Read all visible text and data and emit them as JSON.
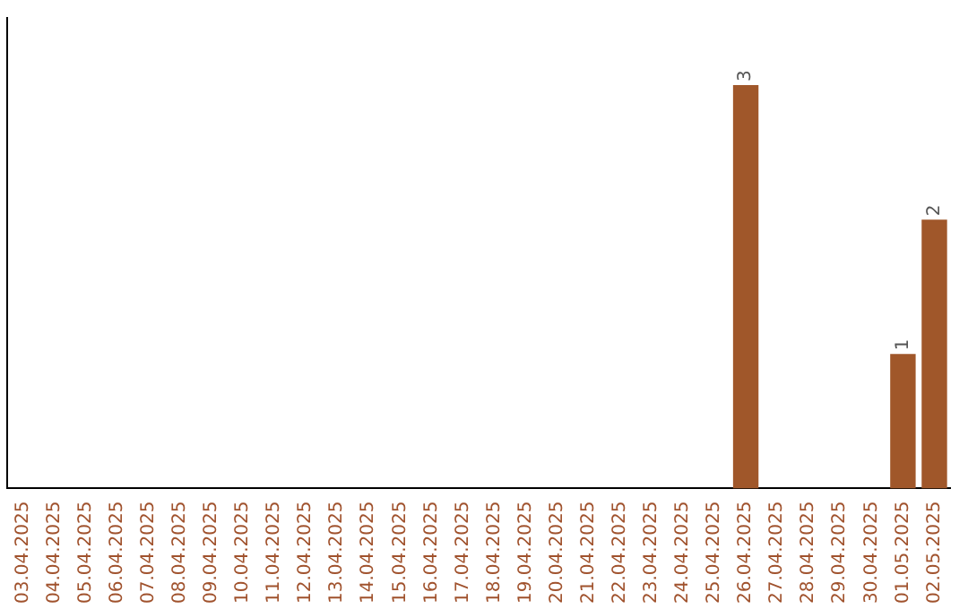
{
  "chart_data": {
    "type": "bar",
    "categories": [
      "03.04.2025",
      "04.04.2025",
      "05.04.2025",
      "06.04.2025",
      "07.04.2025",
      "08.04.2025",
      "09.04.2025",
      "10.04.2025",
      "11.04.2025",
      "12.04.2025",
      "13.04.2025",
      "14.04.2025",
      "15.04.2025",
      "16.04.2025",
      "17.04.2025",
      "18.04.2025",
      "19.04.2025",
      "20.04.2025",
      "21.04.2025",
      "22.04.2025",
      "23.04.2025",
      "24.04.2025",
      "25.04.2025",
      "26.04.2025",
      "27.04.2025",
      "28.04.2025",
      "29.04.2025",
      "30.04.2025",
      "01.05.2025",
      "02.05.2025"
    ],
    "values": [
      null,
      null,
      null,
      null,
      null,
      null,
      null,
      null,
      null,
      null,
      null,
      null,
      null,
      null,
      null,
      null,
      null,
      null,
      null,
      null,
      null,
      null,
      null,
      3,
      null,
      null,
      null,
      null,
      1,
      2
    ],
    "value_labels": [
      null,
      null,
      null,
      null,
      null,
      null,
      null,
      null,
      null,
      null,
      null,
      null,
      null,
      null,
      null,
      null,
      null,
      null,
      null,
      null,
      null,
      null,
      null,
      "3",
      null,
      null,
      null,
      null,
      "1",
      "2"
    ],
    "color": "#a0572a",
    "tick_labels": "x",
    "grid": false,
    "legend": false
  }
}
